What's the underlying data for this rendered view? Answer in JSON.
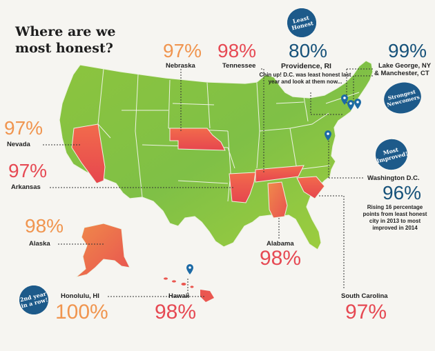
{
  "title": "Where are we most honest?",
  "colors": {
    "low": "#8bc43f",
    "mid": "#d8d03a",
    "high": "#e8544f",
    "accent": "#1d5a8a",
    "orange_text": "#f0954f",
    "red_text": "#e64953"
  },
  "states": {
    "nebraska": {
      "name": "Nebraska",
      "pct": "97%"
    },
    "tennessee": {
      "name": "Tennessee",
      "pct": "98%"
    },
    "nevada": {
      "name": "Nevada",
      "pct": "97%"
    },
    "arkansas": {
      "name": "Arkansas",
      "pct": "97%"
    },
    "alaska": {
      "name": "Alaska",
      "pct": "98%"
    },
    "alabama": {
      "name": "Alabama",
      "pct": "98%"
    },
    "south_carolina": {
      "name": "South Carolina",
      "pct": "97%"
    },
    "hawaii": {
      "name": "Hawaii",
      "pct": "98%"
    }
  },
  "cities": {
    "providence": {
      "name": "Providence, RI",
      "pct": "80%",
      "note": "Chin up! D.C. was least honest last year and look at them now..."
    },
    "lake_george": {
      "name": "Lake George, NY",
      "name2": "& Manchester, CT",
      "pct": "99%"
    },
    "washington": {
      "name": "Washington D.C.",
      "pct": "96%",
      "note": "Rising 16 percentage points from least honest city in 2013 to most improved in 2014"
    },
    "honolulu": {
      "name": "Honolulu, HI",
      "pct": "100%"
    }
  },
  "badges": {
    "least_honest": "Least Honest",
    "strongest": "Strongest Newcomers",
    "most_improved": "Most Improved!",
    "second_year": "2nd year in a row!"
  }
}
